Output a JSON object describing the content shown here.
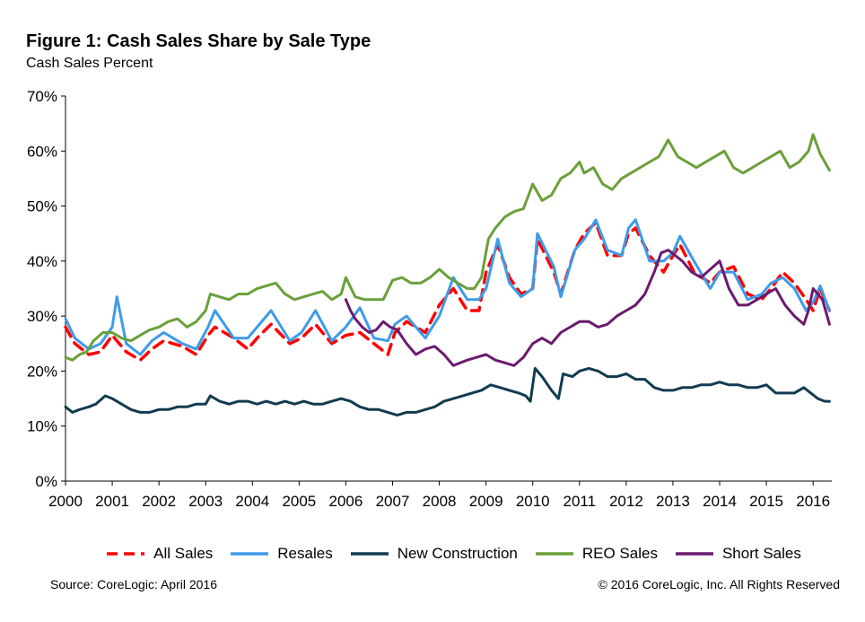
{
  "title": "Figure 1: Cash Sales Share by Sale Type",
  "subtitle": "Cash Sales Percent",
  "source": "Source: CoreLogic: April 2016",
  "copyright": "© 2016 CoreLogic, Inc. All Rights Reserved",
  "chart_data": {
    "type": "line",
    "title": "Figure 1: Cash Sales Share by Sale Type",
    "ylabel": "Cash Sales Percent",
    "xlabel": "",
    "ylim": [
      0,
      70
    ],
    "yticks": [
      "0%",
      "10%",
      "20%",
      "30%",
      "40%",
      "50%",
      "60%",
      "70%"
    ],
    "xlim": [
      2000,
      2016.4
    ],
    "xticks": [
      "2000",
      "2001",
      "2002",
      "2003",
      "2004",
      "2005",
      "2006",
      "2007",
      "2008",
      "2009",
      "2010",
      "2011",
      "2012",
      "2013",
      "2014",
      "2015",
      "2016"
    ],
    "grid": false,
    "legend_position": "bottom",
    "series": [
      {
        "name": "All Sales",
        "color": "#ff0000",
        "dashed": true,
        "x": [
          2000.0,
          2000.2,
          2000.5,
          2000.75,
          2001.0,
          2001.1,
          2001.3,
          2001.6,
          2001.85,
          2002.1,
          2002.5,
          2002.8,
          2003.05,
          2003.2,
          2003.6,
          2003.9,
          2004.1,
          2004.4,
          2004.8,
          2005.05,
          2005.35,
          2005.7,
          2006.0,
          2006.3,
          2006.6,
          2006.9,
          2007.05,
          2007.3,
          2007.7,
          2008.0,
          2008.3,
          2008.6,
          2008.85,
          2009.0,
          2009.25,
          2009.5,
          2009.75,
          2010.0,
          2010.1,
          2010.45,
          2010.6,
          2010.9,
          2011.1,
          2011.35,
          2011.6,
          2011.9,
          2012.05,
          2012.2,
          2012.5,
          2012.8,
          2013.0,
          2013.15,
          2013.45,
          2013.8,
          2014.0,
          2014.3,
          2014.6,
          2014.9,
          2015.1,
          2015.35,
          2015.6,
          2015.85,
          2016.0,
          2016.15,
          2016.35
        ],
        "y": [
          28,
          25,
          23,
          23.5,
          26.5,
          25.5,
          23.5,
          22,
          24,
          25.5,
          24.5,
          23,
          26.5,
          28,
          26,
          24,
          26,
          28.5,
          25,
          26,
          28.5,
          25,
          26.5,
          27,
          25,
          23,
          27,
          29,
          27,
          32,
          35,
          31,
          31,
          38,
          43,
          37,
          34,
          35,
          44,
          38,
          34,
          42,
          45,
          47,
          41,
          41,
          45,
          46,
          41,
          38,
          41,
          43,
          38,
          36,
          38,
          39,
          34,
          33,
          35,
          38,
          36,
          33,
          31,
          35,
          31
        ]
      },
      {
        "name": "Resales",
        "color": "#3d9be9",
        "dashed": false,
        "x": [
          2000.0,
          2000.2,
          2000.5,
          2000.75,
          2001.0,
          2001.1,
          2001.3,
          2001.6,
          2001.85,
          2002.1,
          2002.5,
          2002.8,
          2003.05,
          2003.2,
          2003.6,
          2003.9,
          2004.1,
          2004.4,
          2004.8,
          2005.05,
          2005.35,
          2005.7,
          2006.0,
          2006.3,
          2006.6,
          2006.9,
          2007.05,
          2007.3,
          2007.7,
          2008.0,
          2008.3,
          2008.6,
          2008.85,
          2009.0,
          2009.25,
          2009.5,
          2009.75,
          2010.0,
          2010.1,
          2010.45,
          2010.6,
          2010.9,
          2011.1,
          2011.35,
          2011.6,
          2011.9,
          2012.05,
          2012.2,
          2012.5,
          2012.8,
          2013.0,
          2013.15,
          2013.45,
          2013.8,
          2014.0,
          2014.3,
          2014.6,
          2014.9,
          2015.1,
          2015.35,
          2015.6,
          2015.85,
          2016.0,
          2016.15,
          2016.35
        ],
        "y": [
          29.5,
          26,
          24,
          25,
          28,
          33.5,
          25,
          23,
          25.5,
          27,
          25,
          24,
          28,
          31,
          26,
          26,
          28,
          31,
          25.5,
          27,
          31,
          25.5,
          28,
          31.5,
          26,
          25.5,
          28.5,
          30,
          26,
          30,
          37,
          33,
          33,
          35,
          44,
          36,
          33.5,
          35,
          45,
          39,
          33.5,
          42,
          44,
          47.5,
          42,
          41,
          46,
          47.5,
          40,
          40,
          41.5,
          44.5,
          40,
          35,
          38,
          38,
          33,
          34,
          36,
          37,
          35,
          31,
          32.5,
          35.5,
          31
        ]
      },
      {
        "name": "New Construction",
        "color": "#113b4f",
        "dashed": false,
        "x": [
          2000.0,
          2000.15,
          2000.3,
          2000.5,
          2000.65,
          2000.85,
          2001.0,
          2001.2,
          2001.4,
          2001.6,
          2001.8,
          2002.0,
          2002.2,
          2002.4,
          2002.6,
          2002.8,
          2003.0,
          2003.1,
          2003.3,
          2003.5,
          2003.7,
          2003.9,
          2004.1,
          2004.3,
          2004.5,
          2004.7,
          2004.9,
          2005.1,
          2005.3,
          2005.5,
          2005.7,
          2005.9,
          2006.1,
          2006.3,
          2006.5,
          2006.7,
          2006.9,
          2007.1,
          2007.3,
          2007.5,
          2007.7,
          2007.9,
          2008.1,
          2008.3,
          2008.5,
          2008.7,
          2008.9,
          2009.1,
          2009.3,
          2009.5,
          2009.7,
          2009.85,
          2009.95,
          2010.05,
          2010.2,
          2010.4,
          2010.55,
          2010.65,
          2010.85,
          2011.0,
          2011.2,
          2011.4,
          2011.6,
          2011.8,
          2012.0,
          2012.2,
          2012.4,
          2012.6,
          2012.8,
          2013.0,
          2013.2,
          2013.4,
          2013.6,
          2013.8,
          2014.0,
          2014.2,
          2014.4,
          2014.6,
          2014.8,
          2015.0,
          2015.2,
          2015.4,
          2015.6,
          2015.8,
          2015.95,
          2016.1,
          2016.25,
          2016.35
        ],
        "y": [
          13.5,
          12.5,
          13,
          13.5,
          14,
          15.5,
          15,
          14,
          13,
          12.5,
          12.5,
          13,
          13,
          13.5,
          13.5,
          14,
          14,
          15.5,
          14.5,
          14,
          14.5,
          14.5,
          14,
          14.5,
          14,
          14.5,
          14,
          14.5,
          14,
          14,
          14.5,
          15,
          14.5,
          13.5,
          13,
          13,
          12.5,
          12,
          12.5,
          12.5,
          13,
          13.5,
          14.5,
          15,
          15.5,
          16,
          16.5,
          17.5,
          17,
          16.5,
          16,
          15.5,
          14.5,
          20.5,
          19,
          16.5,
          15,
          19.5,
          19,
          20,
          20.5,
          20,
          19,
          19,
          19.5,
          18.5,
          18.5,
          17,
          16.5,
          16.5,
          17,
          17,
          17.5,
          17.5,
          18,
          17.5,
          17.5,
          17,
          17,
          17.5,
          16,
          16,
          16,
          17,
          16,
          15,
          14.5,
          14.5
        ]
      },
      {
        "name": "REO Sales",
        "color": "#6aa03a",
        "dashed": false,
        "x": [
          2000.0,
          2000.15,
          2000.3,
          2000.45,
          2000.6,
          2000.8,
          2001.0,
          2001.2,
          2001.4,
          2001.6,
          2001.8,
          2002.0,
          2002.2,
          2002.4,
          2002.6,
          2002.8,
          2003.0,
          2003.1,
          2003.3,
          2003.5,
          2003.7,
          2003.9,
          2004.1,
          2004.3,
          2004.5,
          2004.7,
          2004.9,
          2005.1,
          2005.3,
          2005.5,
          2005.7,
          2005.9,
          2006.0,
          2006.2,
          2006.4,
          2006.6,
          2006.8,
          2007.0,
          2007.2,
          2007.4,
          2007.6,
          2007.8,
          2008.0,
          2008.2,
          2008.4,
          2008.6,
          2008.75,
          2008.9,
          2009.05,
          2009.2,
          2009.4,
          2009.6,
          2009.8,
          2010.0,
          2010.2,
          2010.4,
          2010.6,
          2010.8,
          2011.0,
          2011.1,
          2011.3,
          2011.5,
          2011.7,
          2011.9,
          2012.1,
          2012.3,
          2012.5,
          2012.7,
          2012.9,
          2013.1,
          2013.3,
          2013.5,
          2013.7,
          2013.9,
          2014.1,
          2014.3,
          2014.5,
          2014.7,
          2014.9,
          2015.1,
          2015.3,
          2015.5,
          2015.7,
          2015.9,
          2016.0,
          2016.15,
          2016.35
        ],
        "y": [
          22.5,
          22,
          23,
          23.5,
          25.5,
          27,
          27,
          26,
          25.5,
          26.5,
          27.5,
          28,
          29,
          29.5,
          28,
          29,
          31,
          34,
          33.5,
          33,
          34,
          34,
          35,
          35.5,
          36,
          34,
          33,
          33.5,
          34,
          34.5,
          33,
          34,
          37,
          33.5,
          33,
          33,
          33,
          36.5,
          37,
          36,
          36,
          37,
          38.5,
          37,
          36,
          35,
          35,
          37,
          44,
          46,
          48,
          49,
          49.5,
          54,
          51,
          52,
          55,
          56,
          58,
          56,
          57,
          54,
          53,
          55,
          56,
          57,
          58,
          59,
          62,
          59,
          58,
          57,
          58,
          59,
          60,
          57,
          56,
          57,
          58,
          59,
          60,
          57,
          58,
          60,
          63,
          59.5,
          56.5
        ]
      },
      {
        "name": "Short Sales",
        "color": "#6b1a6e",
        "dashed": false,
        "x": [
          2006.0,
          2006.1,
          2006.2,
          2006.35,
          2006.5,
          2006.65,
          2006.8,
          2006.95,
          2007.1,
          2007.3,
          2007.5,
          2007.7,
          2007.9,
          2008.1,
          2008.3,
          2008.45,
          2008.6,
          2008.8,
          2009.0,
          2009.2,
          2009.4,
          2009.6,
          2009.8,
          2010.0,
          2010.2,
          2010.4,
          2010.6,
          2010.8,
          2011.0,
          2011.2,
          2011.4,
          2011.6,
          2011.8,
          2012.0,
          2012.2,
          2012.4,
          2012.6,
          2012.75,
          2012.9,
          2013.05,
          2013.2,
          2013.4,
          2013.6,
          2013.8,
          2014.0,
          2014.2,
          2014.4,
          2014.6,
          2014.8,
          2015.0,
          2015.2,
          2015.4,
          2015.6,
          2015.8,
          2015.9,
          2016.0,
          2016.2,
          2016.35
        ],
        "y": [
          33,
          31,
          29.5,
          28,
          27,
          27.5,
          29,
          28,
          27.5,
          25,
          23,
          24,
          24.5,
          23,
          21,
          21.5,
          22,
          22.5,
          23,
          22,
          21.5,
          21,
          22.5,
          25,
          26,
          25,
          27,
          28,
          29,
          29,
          28,
          28.5,
          30,
          31,
          32,
          34,
          38,
          41.5,
          42,
          41,
          40,
          38,
          37,
          38.5,
          40,
          35,
          32,
          32,
          33,
          34,
          35,
          32,
          30,
          28.5,
          31,
          35,
          33,
          28.5
        ]
      }
    ]
  }
}
